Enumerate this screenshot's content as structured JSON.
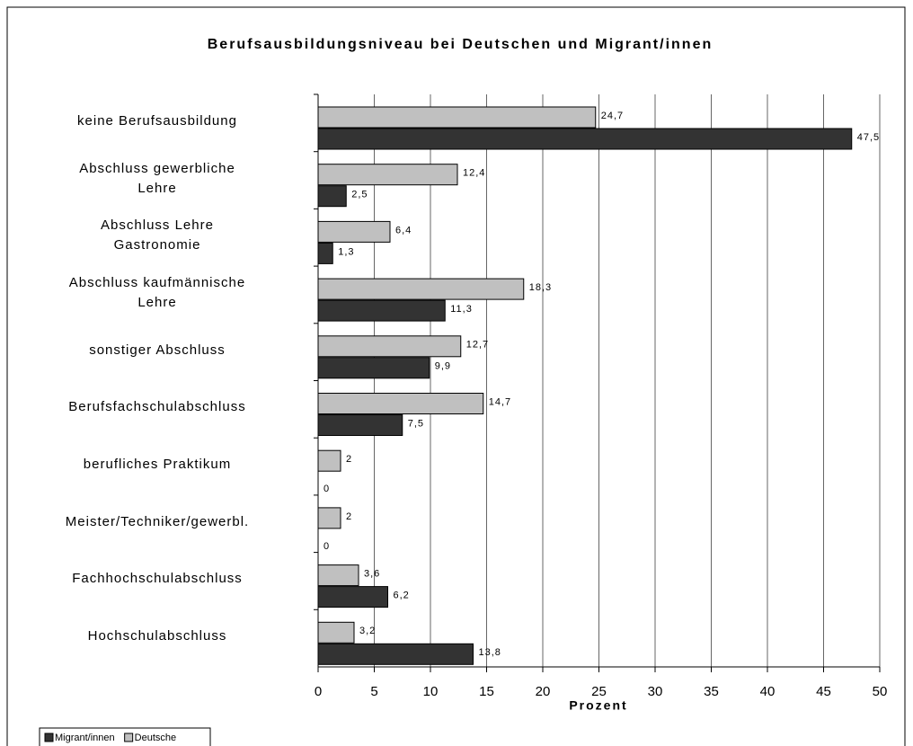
{
  "chart_data": {
    "type": "bar",
    "orientation": "horizontal",
    "title": "Berufsausbildungsniveau bei Deutschen und Migrant/innen",
    "x_label": "Prozent",
    "categories": [
      "keine Berufsausbildung",
      "Abschluss gewerbliche\nLehre",
      "Abschluss Lehre\nGastronomie",
      "Abschluss kaufmännische\nLehre",
      "sonstiger Abschluss",
      "Berufsfachschulabschluss",
      "berufliches Praktikum",
      "Meister/Techniker/gewerbl.",
      "Fachhochschulabschluss",
      "Hochschulabschluss"
    ],
    "series": [
      {
        "name": "Migrant/innen",
        "color": "#333333",
        "values": [
          47.5,
          2.5,
          1.3,
          11.3,
          9.9,
          7.5,
          0,
          0,
          6.2,
          13.8
        ],
        "value_labels": [
          "47,5",
          "2,5",
          "1,3",
          "11,3",
          "9,9",
          "7,5",
          "0",
          "0",
          "6,2",
          "13,8"
        ]
      },
      {
        "name": "Deutsche",
        "color": "#c0c0c0",
        "values": [
          24.7,
          12.4,
          6.4,
          18.3,
          12.7,
          14.7,
          2,
          2,
          3.6,
          3.2
        ],
        "value_labels": [
          "24,7",
          "12,4",
          "6,4",
          "18,3",
          "12,7",
          "14,7",
          "2",
          "2",
          "3,6",
          "3,2"
        ]
      }
    ],
    "xlim": [
      0,
      50
    ],
    "xticks": [
      0,
      5,
      10,
      15,
      20,
      25,
      30,
      35,
      40,
      45,
      50
    ],
    "grid": true,
    "legend": "bottom-left"
  }
}
